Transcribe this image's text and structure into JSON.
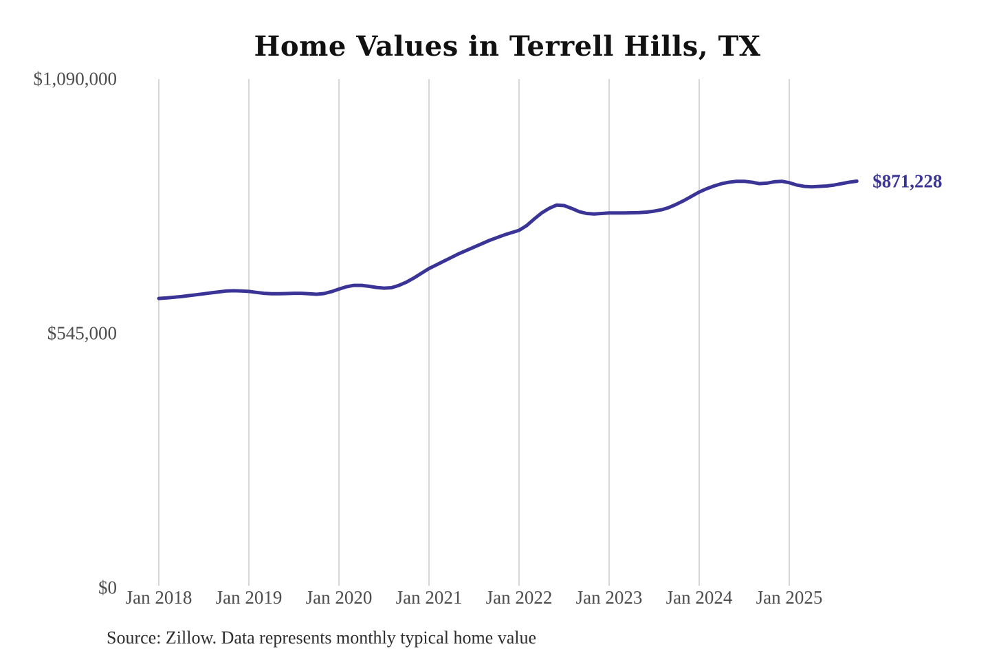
{
  "chart_data": {
    "type": "line",
    "title": "Home Values in Terrell Hills, TX",
    "source_note": "Source: Zillow. Data represents monthly typical home value",
    "end_label": "$871,228",
    "final_value": 871228,
    "line_color": "#3a3496",
    "gridline_color": "#c9c9c9",
    "grid": "vertical-only",
    "legend": "none",
    "x_axis": {
      "tick_labels": [
        "Jan 2018",
        "Jan 2019",
        "Jan 2020",
        "Jan 2021",
        "Jan 2022",
        "Jan 2023",
        "Jan 2024",
        "Jan 2025"
      ]
    },
    "y_axis": {
      "min": 0,
      "max": 1090000,
      "ticks": [
        {
          "label": "$0",
          "value": 0
        },
        {
          "label": "$545,000",
          "value": 545000
        },
        {
          "label": "$1,090,000",
          "value": 1090000
        }
      ]
    },
    "series": {
      "name": "Monthly typical home value",
      "unit": "USD",
      "start": "2018-01",
      "frequency": "monthly",
      "values": [
        620000,
        621000,
        622500,
        624000,
        626000,
        628000,
        630000,
        632000,
        634000,
        636000,
        636500,
        636000,
        635000,
        633000,
        631000,
        630000,
        630000,
        630500,
        631000,
        631000,
        630000,
        629000,
        630500,
        634500,
        640000,
        645000,
        648000,
        648000,
        646000,
        643500,
        642000,
        643000,
        648000,
        655000,
        664000,
        674000,
        684000,
        692000,
        700000,
        708000,
        716000,
        723000,
        730000,
        737000,
        744000,
        750000,
        756000,
        761000,
        766000,
        776000,
        790000,
        803000,
        813000,
        820000,
        819000,
        813000,
        806000,
        802000,
        801000,
        802000,
        803000,
        803000,
        803000,
        803500,
        804000,
        805000,
        807000,
        810000,
        815000,
        822000,
        830000,
        839000,
        848000,
        855000,
        861000,
        866000,
        869000,
        871000,
        871000,
        869000,
        866000,
        867000,
        870000,
        871000,
        868000,
        863000,
        860000,
        859000,
        860000,
        861000,
        863000,
        866000,
        869000,
        871228
      ]
    }
  }
}
